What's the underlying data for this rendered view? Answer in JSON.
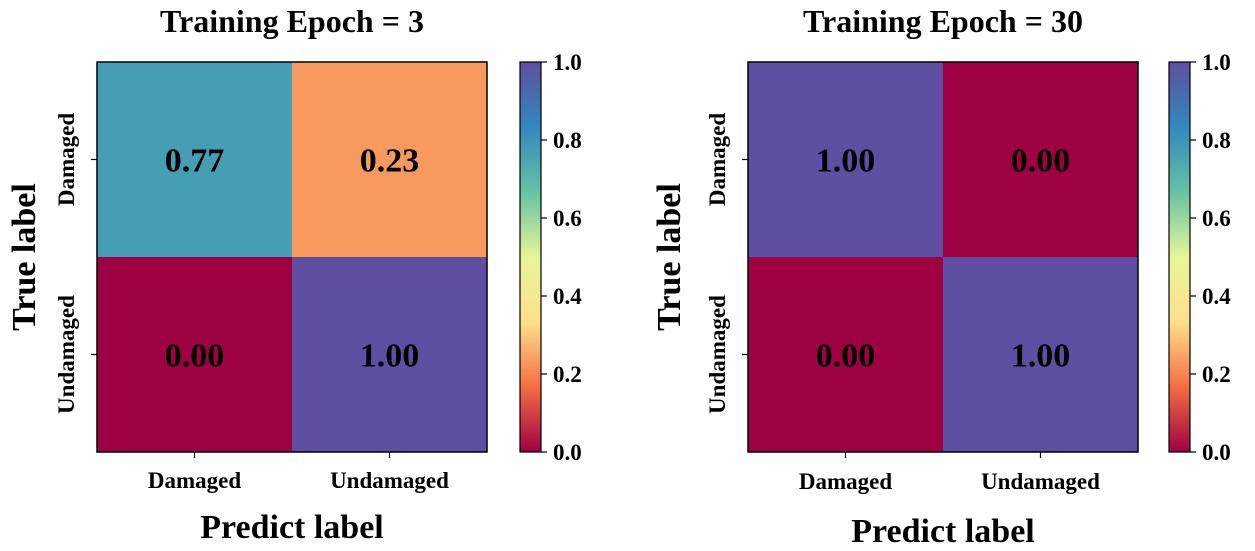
{
  "chart_data": [
    {
      "type": "heatmap",
      "title": "Training Epoch = 3",
      "xlabel": "Predict label",
      "ylabel": "True label",
      "x_categories": [
        "Damaged",
        "Undamaged"
      ],
      "y_categories": [
        "Damaged",
        "Undamaged"
      ],
      "values": [
        [
          0.77,
          0.23
        ],
        [
          0.0,
          1.0
        ]
      ],
      "cell_labels": [
        [
          "0.77",
          "0.23"
        ],
        [
          "0.00",
          "1.00"
        ]
      ],
      "colorbar": {
        "range": [
          0.0,
          1.0
        ],
        "ticks": [
          "0.0",
          "0.2",
          "0.4",
          "0.6",
          "0.8",
          "1.0"
        ],
        "colormap": "Spectral"
      }
    },
    {
      "type": "heatmap",
      "title": "Training Epoch = 30",
      "xlabel": "Predict label",
      "ylabel": "True label",
      "x_categories": [
        "Damaged",
        "Undamaged"
      ],
      "y_categories": [
        "Damaged",
        "Undamaged"
      ],
      "values": [
        [
          1.0,
          0.0
        ],
        [
          0.0,
          1.0
        ]
      ],
      "cell_labels": [
        [
          "1.00",
          "0.00"
        ],
        [
          "0.00",
          "1.00"
        ]
      ],
      "colorbar": {
        "range": [
          0.0,
          1.0
        ],
        "ticks": [
          "0.0",
          "0.2",
          "0.4",
          "0.6",
          "0.8",
          "1.0"
        ],
        "colormap": "Spectral"
      }
    }
  ],
  "colors": {
    "spectral_stops": [
      "#9e0142",
      "#f46d43",
      "#fee08b",
      "#e6f598",
      "#66c2a5",
      "#3288bd",
      "#5e4fa2"
    ],
    "axis": "#000000"
  }
}
